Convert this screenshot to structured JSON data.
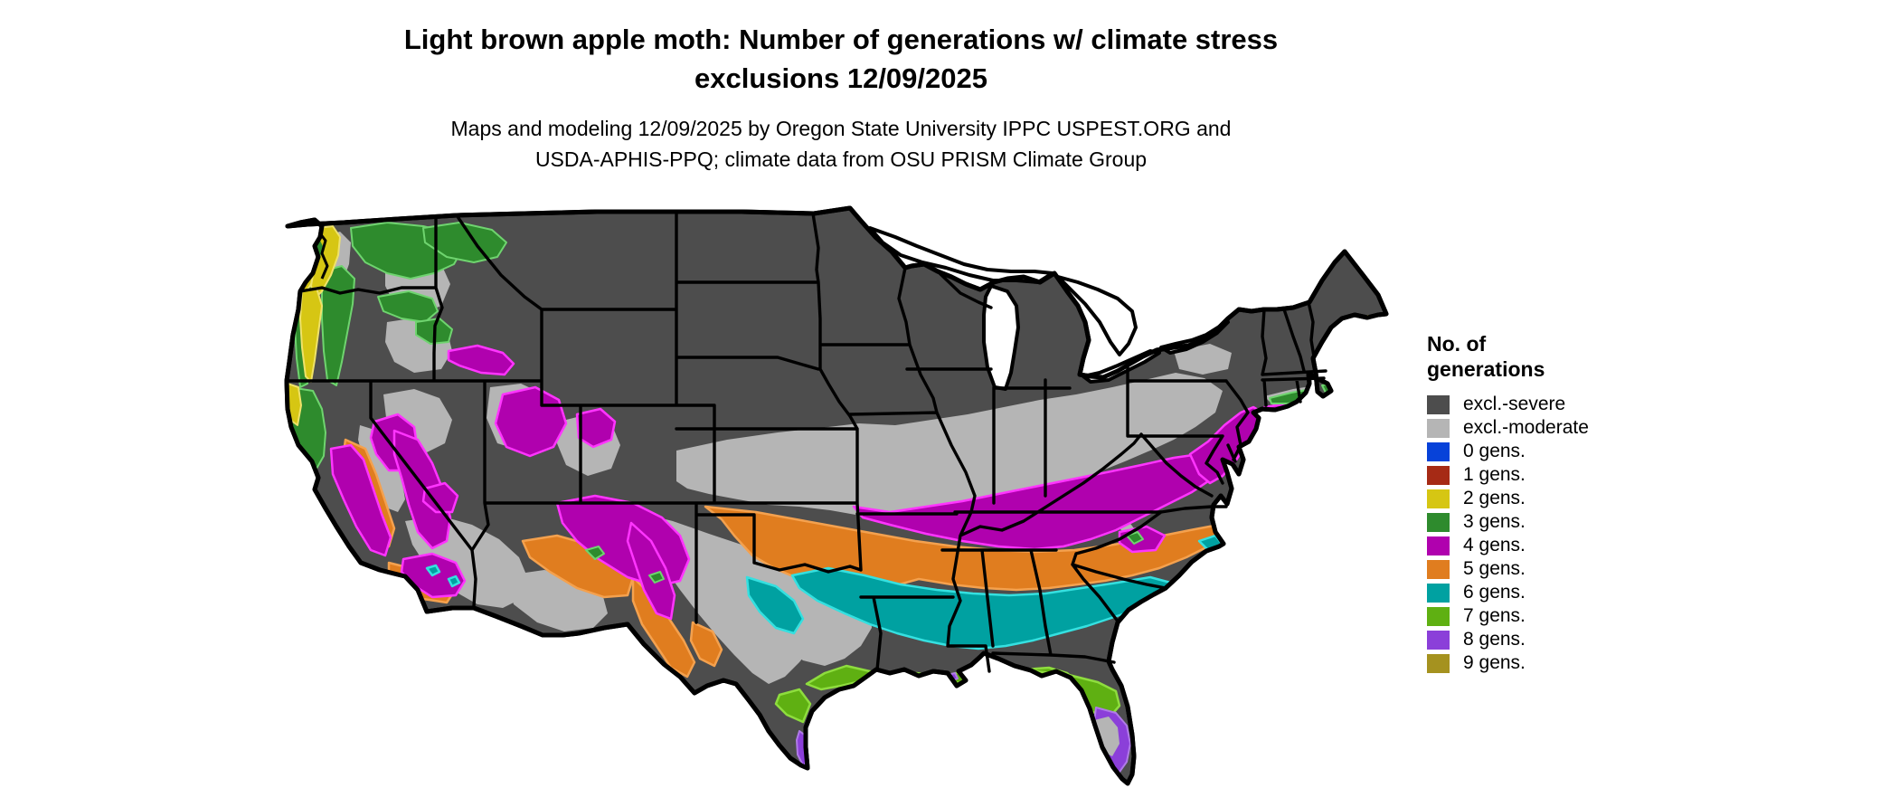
{
  "header": {
    "title_line1": "Light brown apple moth: Number of generations w/ climate stress",
    "title_line2": "exclusions 12/09/2025",
    "subtitle_line1": "Maps and modeling 12/09/2025 by Oregon State University IPPC USPEST.ORG and",
    "subtitle_line2": "USDA-APHIS-PPQ; climate data from OSU PRISM Climate Group"
  },
  "legend": {
    "title_line1": "No. of",
    "title_line2": "generations",
    "items": [
      {
        "label": "excl.-severe",
        "color": "#4d4d4d"
      },
      {
        "label": "excl.-moderate",
        "color": "#b5b5b5"
      },
      {
        "label": "0 gens.",
        "color": "#0742d9"
      },
      {
        "label": "1 gens.",
        "color": "#a62a15"
      },
      {
        "label": "2 gens.",
        "color": "#d6c613"
      },
      {
        "label": "3 gens.",
        "color": "#2e8b2d"
      },
      {
        "label": "4 gens.",
        "color": "#b001ae"
      },
      {
        "label": "5 gens.",
        "color": "#e07d1f"
      },
      {
        "label": "6 gens.",
        "color": "#00a1a1"
      },
      {
        "label": "7 gens.",
        "color": "#5fb012"
      },
      {
        "label": "8 gens.",
        "color": "#8b3fd9"
      },
      {
        "label": "9 gens.",
        "color": "#a5921f"
      }
    ]
  }
}
